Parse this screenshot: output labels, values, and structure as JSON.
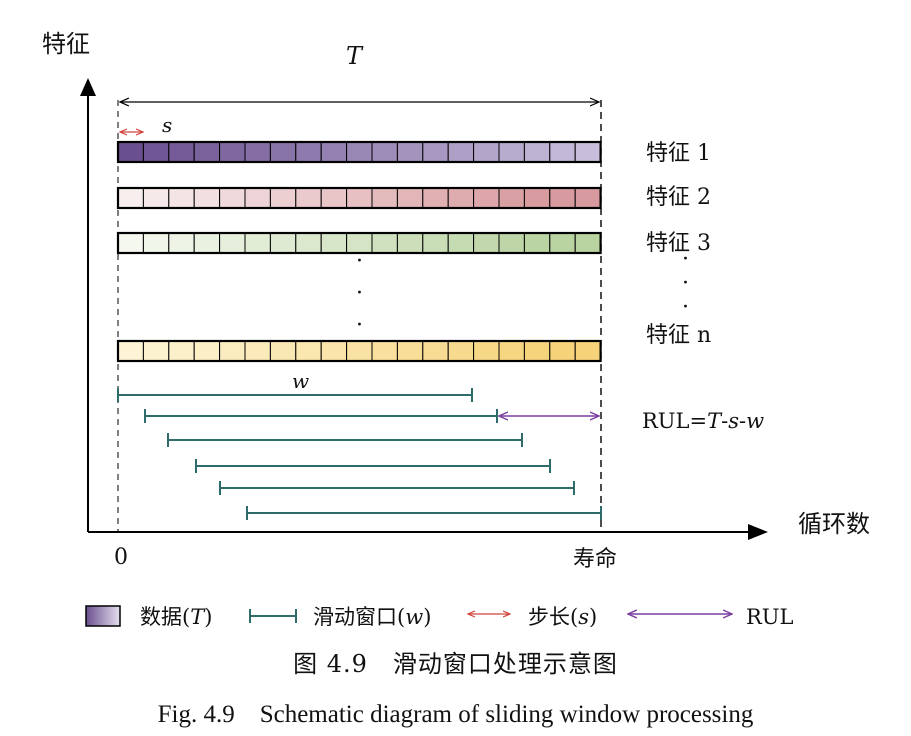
{
  "axes": {
    "y_label": "特征",
    "x_label": "循环数",
    "origin_label": "0",
    "end_label": "寿命"
  },
  "dimensions": {
    "total": "T",
    "step": "s",
    "window": "w",
    "rul_prefix": "RUL=",
    "rul_T": "T",
    "rul_dash1": "-",
    "rul_s": "s",
    "rul_dash2": "-",
    "rul_w": "w"
  },
  "features": [
    {
      "label": "特征 1",
      "color_light": "#c8bedb",
      "color_dark": "#6a4f8f",
      "gradient": "dark-to-light"
    },
    {
      "label": "特征 2",
      "color_light": "#f8eeee",
      "color_dark": "#d79a9e",
      "gradient": "light-to-dark"
    },
    {
      "label": "特征 3",
      "color_light": "#f4f8ee",
      "color_dark": "#b9d3a1",
      "gradient": "light-to-dark"
    },
    {
      "label": "特征 n",
      "color_light": "#fdf4d6",
      "color_dark": "#f6d37a",
      "gradient": "light-to-dark"
    }
  ],
  "ellipsis_dots": [
    "·",
    "·",
    "·"
  ],
  "legend": {
    "data_label": "数据(",
    "data_T": "T",
    "data_close": ")",
    "window_label": "滑动窗口(",
    "window_w": "w",
    "window_close": ")",
    "step_label": "步长(",
    "step_s": "s",
    "step_close": ")",
    "rul_label": "RUL"
  },
  "colors": {
    "window_line": "#2e6b6b",
    "step_arrow": "#d0443c",
    "rul_arrow": "#7b3fa0",
    "axis": "#000000"
  },
  "caption": {
    "zh": "图 4.9　滑动窗口处理示意图",
    "en": "Fig. 4.9　Schematic diagram of sliding window processing"
  }
}
